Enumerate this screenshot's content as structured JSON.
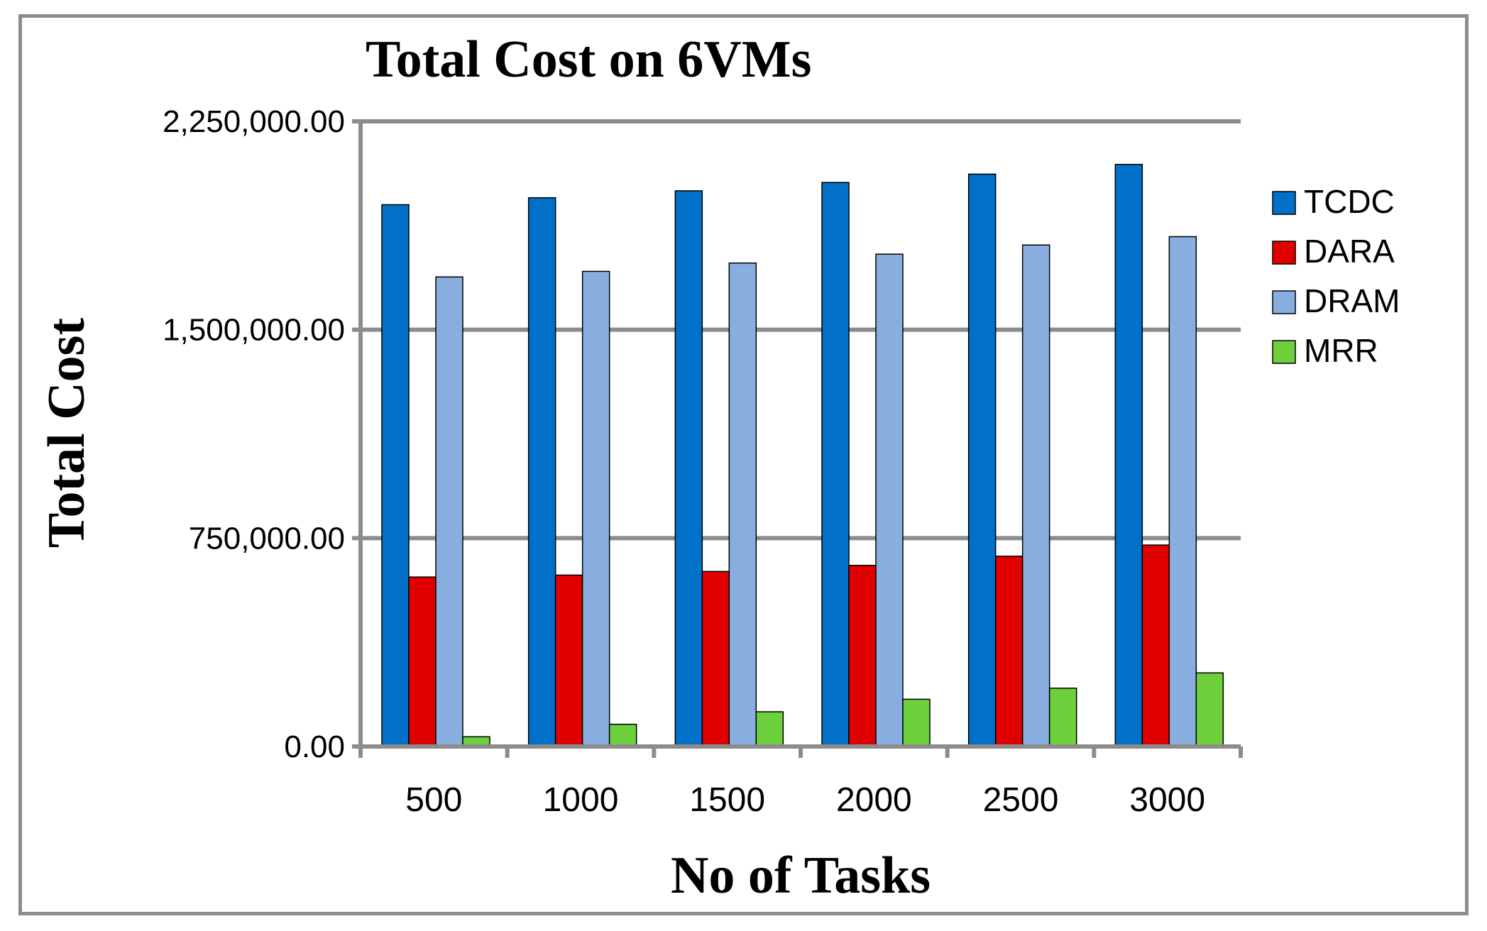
{
  "chart_data": {
    "type": "bar",
    "title": "Total Cost on 6VMs",
    "xlabel": "No of Tasks",
    "ylabel": "Total Cost",
    "categories": [
      "500",
      "1000",
      "1500",
      "2000",
      "2500",
      "3000"
    ],
    "ylim": [
      0,
      2250000
    ],
    "yticks": [
      0,
      750000,
      1500000,
      2250000
    ],
    "ytick_labels": [
      "0.00",
      "750,000.00",
      "1,500,000.00",
      "2,250,000.00"
    ],
    "grid": true,
    "legend_position": "right",
    "series": [
      {
        "name": "TCDC",
        "color": "#0070c8",
        "values": [
          1950000,
          1975000,
          2000000,
          2030000,
          2060000,
          2095000
        ]
      },
      {
        "name": "DARA",
        "color": "#e00000",
        "values": [
          610000,
          617000,
          630000,
          652000,
          685000,
          725000
        ]
      },
      {
        "name": "DRAM",
        "color": "#88aee0",
        "values": [
          1690000,
          1710000,
          1740000,
          1772000,
          1805000,
          1835000
        ]
      },
      {
        "name": "MRR",
        "color": "#6ed03c",
        "values": [
          35000,
          80000,
          125000,
          170000,
          210000,
          265000
        ]
      }
    ]
  }
}
